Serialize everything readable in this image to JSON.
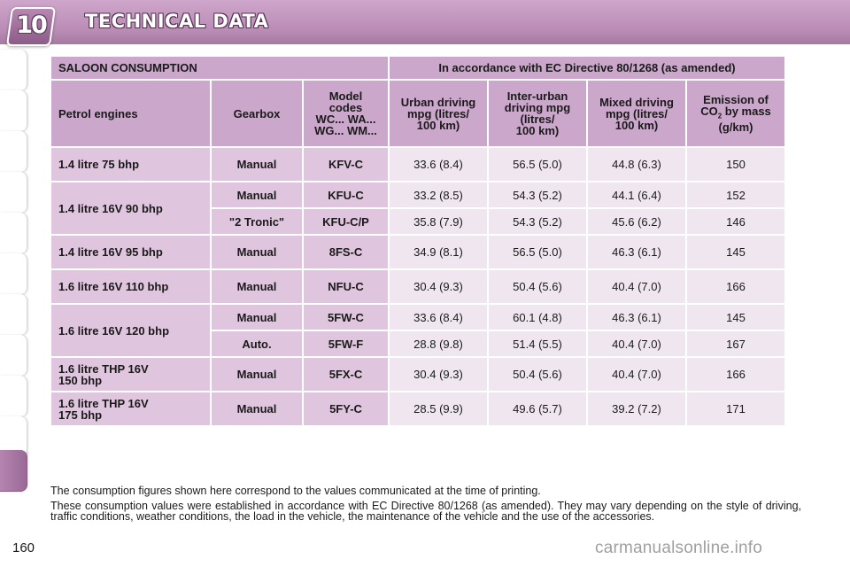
{
  "header": {
    "chapter": "10",
    "title": "TECHNICAL DATA"
  },
  "table": {
    "section_title": "SALOON CONSUMPTION",
    "directive": "In accordance with EC Directive 80/1268 (as amended)",
    "columns": {
      "engine": "Petrol engines",
      "gearbox": "Gearbox",
      "model_codes": [
        "Model",
        "codes",
        "WC... WA...",
        "WG... WM..."
      ],
      "urban": [
        "Urban driving",
        "mpg (litres/",
        "100 km)"
      ],
      "interurban": [
        "Inter-urban",
        "driving mpg",
        "(litres/",
        "100 km)"
      ],
      "mixed": [
        "Mixed driving",
        "mpg (litres/",
        "100 km)"
      ],
      "emission": [
        "Emission of",
        "CO",
        "2",
        " by mass",
        "(g/km)"
      ]
    },
    "engines": [
      {
        "name": [
          "1.4 litre 75 bhp"
        ],
        "rows": [
          {
            "gearbox": "Manual",
            "code": "KFV-C",
            "urban": "33.6 (8.4)",
            "interurban": "56.5 (5.0)",
            "mixed": "44.8 (6.3)",
            "co2": "150"
          }
        ]
      },
      {
        "name": [
          "1.4 litre 16V 90 bhp"
        ],
        "rows": [
          {
            "gearbox": "Manual",
            "code": "KFU-C",
            "urban": "33.2 (8.5)",
            "interurban": "54.3 (5.2)",
            "mixed": "44.1 (6.4)",
            "co2": "152"
          },
          {
            "gearbox": "\"2 Tronic\"",
            "code": "KFU-C/P",
            "urban": "35.8 (7.9)",
            "interurban": "54.3 (5.2)",
            "mixed": "45.6 (6.2)",
            "co2": "146"
          }
        ]
      },
      {
        "name": [
          "1.4 litre 16V 95 bhp"
        ],
        "rows": [
          {
            "gearbox": "Manual",
            "code": "8FS-C",
            "urban": "34.9 (8.1)",
            "interurban": "56.5 (5.0)",
            "mixed": "46.3 (6.1)",
            "co2": "145"
          }
        ]
      },
      {
        "name": [
          "1.6 litre 16V 110 bhp"
        ],
        "rows": [
          {
            "gearbox": "Manual",
            "code": "NFU-C",
            "urban": "30.4 (9.3)",
            "interurban": "50.4 (5.6)",
            "mixed": "40.4 (7.0)",
            "co2": "166"
          }
        ]
      },
      {
        "name": [
          "1.6 litre 16V 120 bhp"
        ],
        "rows": [
          {
            "gearbox": "Manual",
            "code": "5FW-C",
            "urban": "33.6 (8.4)",
            "interurban": "60.1 (4.8)",
            "mixed": "46.3 (6.1)",
            "co2": "145"
          },
          {
            "gearbox": "Auto.",
            "code": "5FW-F",
            "urban": "28.8 (9.8)",
            "interurban": "51.4 (5.5)",
            "mixed": "40.4 (7.0)",
            "co2": "167"
          }
        ]
      },
      {
        "name": [
          "1.6 litre THP 16V",
          "150 bhp"
        ],
        "rows": [
          {
            "gearbox": "Manual",
            "code": "5FX-C",
            "urban": "30.4 (9.3)",
            "interurban": "50.4 (5.6)",
            "mixed": "40.4 (7.0)",
            "co2": "166"
          }
        ]
      },
      {
        "name": [
          "1.6 litre THP 16V",
          "175 bhp"
        ],
        "rows": [
          {
            "gearbox": "Manual",
            "code": "5FY-C",
            "urban": "28.5 (9.9)",
            "interurban": "49.6 (5.7)",
            "mixed": "39.2 (7.2)",
            "co2": "171"
          }
        ]
      }
    ]
  },
  "notes": {
    "line1": "The consumption figures shown here correspond to the values communicated at the time of printing.",
    "line2": "These consumption values were established in accordance with EC Directive 80/1268 (as amended). They may vary depending on the style of driving, traffic conditions, weather conditions, the load in the vehicle, the maintenance of the vehicle and the use of the accessories."
  },
  "page_number": "160",
  "watermark": "carmanualsonline.info",
  "colors": {
    "header_band": "#b98bb5",
    "header_cell": "#cba7cb",
    "label_cell": "#dfc6de",
    "value_cell": "#efe6f0"
  }
}
